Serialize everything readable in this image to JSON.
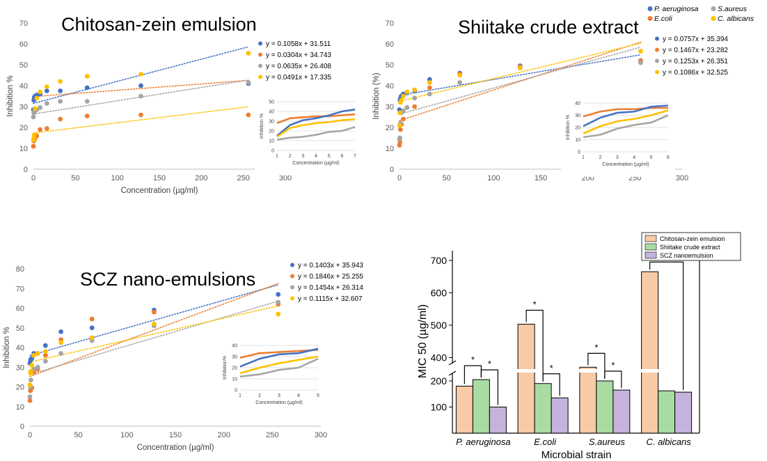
{
  "legend": {
    "items": [
      {
        "label": "P. aeruginosa",
        "color": "#4472C4",
        "italic": true
      },
      {
        "label": "S.aureus",
        "color": "#A5A5A5",
        "italic": true
      },
      {
        "label": "E.coli",
        "color": "#ED7D31",
        "italic": true
      },
      {
        "label": "C. albicans",
        "color": "#FFC000",
        "italic": true
      }
    ]
  },
  "chart_data": [
    {
      "type": "scatter",
      "title": "Chitosan-zein emulsion",
      "xlabel": "Concentration (µg/ml)",
      "ylabel": "Inhibition %",
      "xlim": [
        0,
        300
      ],
      "ylim": [
        0,
        70
      ],
      "xticks": [
        0,
        50,
        100,
        150,
        200,
        250,
        300
      ],
      "yticks": [
        0,
        10,
        20,
        30,
        40,
        50,
        60,
        70
      ],
      "trendline_style": "dotted",
      "series": [
        {
          "organism": "P. aeruginosa",
          "color": "#4472C4",
          "equation": "y = 0.1058x + 31.511",
          "slope": 0.1058,
          "intercept": 31.511,
          "x": [
            0,
            0.5,
            1,
            2,
            4,
            8,
            16,
            32,
            64,
            128,
            256
          ],
          "y": [
            28.5,
            33,
            34.5,
            35,
            35.5,
            36,
            37.5,
            37.5,
            39,
            40,
            41
          ]
        },
        {
          "organism": "E.coli",
          "color": "#ED7D31",
          "equation": "y = 0.0304x + 34.743",
          "slope": 0.0304,
          "intercept": 34.743,
          "x": [
            0,
            0.5,
            1,
            2,
            4,
            8,
            16,
            32,
            64,
            128,
            256
          ],
          "y": [
            11,
            13.5,
            14,
            15,
            16,
            19,
            19.5,
            24,
            25.5,
            26,
            26
          ]
        },
        {
          "organism": "S.aureus",
          "color": "#A5A5A5",
          "equation": "y = 0.0635x + 26.408",
          "slope": 0.0635,
          "intercept": 26.408,
          "x": [
            0,
            0.5,
            1,
            2,
            4,
            8,
            16,
            32,
            64,
            128,
            256
          ],
          "y": [
            25,
            27,
            27.5,
            28,
            28.5,
            29.5,
            31.5,
            32.5,
            32.5,
            35,
            41.5
          ]
        },
        {
          "organism": "C. albicans",
          "color": "#FFC000",
          "equation": "y = 0.0491x + 17.335",
          "slope": 0.0491,
          "intercept": 17.335,
          "x": [
            0,
            0.5,
            1,
            2,
            4,
            8,
            16,
            32,
            64,
            128,
            256
          ],
          "y": [
            14,
            15,
            16.5,
            29,
            34,
            37,
            39.5,
            42,
            44.5,
            45.5,
            55.5
          ]
        }
      ],
      "inset": {
        "type": "line",
        "xlabel": "Concentration (µg/ml)",
        "ylabel": "Inhibition %",
        "xlim": [
          1,
          7
        ],
        "ylim": [
          0,
          50
        ],
        "xticks": [
          1,
          2,
          3,
          4,
          5,
          6,
          7
        ],
        "yticks": [
          0,
          10,
          20,
          30,
          40,
          50
        ],
        "x": [
          1,
          2,
          3,
          4,
          5,
          6,
          7
        ],
        "series": [
          {
            "color": "#ED7D31",
            "y": [
              28,
              33,
              34,
              35,
              35,
              36,
              37
            ]
          },
          {
            "color": "#4472C4",
            "y": [
              15,
              26,
              31,
              33,
              36,
              40,
              42
            ]
          },
          {
            "color": "#FFC000",
            "y": [
              14,
              23,
              26,
              28,
              29,
              31,
              32
            ]
          },
          {
            "color": "#A5A5A5",
            "y": [
              11,
              13,
              14,
              16,
              19,
              20,
              24
            ]
          }
        ]
      }
    },
    {
      "type": "scatter",
      "title": "Shiitake crude extract",
      "xlabel": "",
      "ylabel": "Inhibition (%)",
      "xlim": [
        0,
        300
      ],
      "ylim": [
        0,
        70
      ],
      "xticks": [
        0,
        50,
        100,
        150,
        200,
        250,
        300
      ],
      "yticks": [
        0,
        10,
        20,
        30,
        40,
        50,
        60,
        70
      ],
      "trendline_style": "dotted",
      "series": [
        {
          "organism": "P. aeruginosa",
          "color": "#4472C4",
          "equation": "y = 0.0757x + 35.394",
          "slope": 0.0757,
          "intercept": 35.394,
          "x": [
            0,
            0.5,
            1,
            2,
            4,
            8,
            16,
            32,
            64,
            128,
            256
          ],
          "y": [
            28.5,
            33,
            34,
            35,
            36,
            36.5,
            37.5,
            43,
            46,
            49.5,
            52
          ]
        },
        {
          "organism": "E.coli",
          "color": "#ED7D31",
          "equation": "y = 0.1467x + 23.282",
          "slope": 0.1467,
          "intercept": 23.282,
          "x": [
            0,
            0.5,
            1,
            2,
            4,
            8,
            16,
            32,
            64,
            128,
            256
          ],
          "y": [
            11.5,
            13,
            19,
            21.5,
            24,
            29.5,
            30,
            39,
            45.5,
            49,
            52
          ]
        },
        {
          "organism": "S.aureus",
          "color": "#A5A5A5",
          "equation": "y = 0.1253x + 26.351",
          "slope": 0.1253,
          "intercept": 26.351,
          "x": [
            0,
            0.5,
            1,
            2,
            4,
            8,
            16,
            32,
            64,
            128,
            256
          ],
          "y": [
            14.5,
            15,
            22,
            27,
            28,
            29.5,
            34,
            36,
            41.5,
            48.5,
            51
          ]
        },
        {
          "organism": "C. albicans",
          "color": "#FFC000",
          "equation": "y = 0.1086x + 32.525",
          "slope": 0.1086,
          "intercept": 32.525,
          "x": [
            0,
            0.5,
            1,
            2,
            4,
            8,
            16,
            32,
            64,
            128,
            256
          ],
          "y": [
            21,
            27,
            32,
            33,
            35,
            37,
            38,
            41.5,
            45,
            48.5,
            56.5
          ]
        }
      ],
      "inset": {
        "type": "line",
        "xlabel": "Concentration (µg/ml)",
        "ylabel": "Inhibition %",
        "xlim": [
          1,
          6
        ],
        "ylim": [
          0,
          40
        ],
        "xticks": [
          1,
          2,
          3,
          4,
          5,
          6
        ],
        "yticks": [
          0,
          10,
          20,
          30,
          40
        ],
        "x": [
          1,
          2,
          3,
          4,
          5,
          6
        ],
        "series": [
          {
            "color": "#ED7D31",
            "y": [
              29,
              33,
              35,
              35,
              36,
              36
            ]
          },
          {
            "color": "#4472C4",
            "y": [
              21,
              28,
              32,
              33,
              37,
              38
            ]
          },
          {
            "color": "#FFC000",
            "y": [
              15,
              21,
              25,
              27,
              30,
              34
            ]
          },
          {
            "color": "#A5A5A5",
            "y": [
              12,
              14,
              19,
              22,
              24,
              30
            ]
          }
        ]
      }
    },
    {
      "type": "scatter",
      "title": "SCZ nano-emulsions",
      "xlabel": "Concentration (µg/ml)",
      "ylabel": "Inhibition %",
      "xlim": [
        0,
        300
      ],
      "ylim": [
        0,
        80
      ],
      "xticks": [
        0,
        50,
        100,
        150,
        200,
        250,
        300
      ],
      "yticks": [
        0,
        10,
        20,
        30,
        40,
        50,
        60,
        70,
        80
      ],
      "trendline_style": "dotted",
      "series": [
        {
          "organism": "P. aeruginosa",
          "color": "#4472C4",
          "equation": "y = 0.1403x + 35.943",
          "slope": 0.1403,
          "intercept": 35.943,
          "x": [
            0,
            0.5,
            1,
            2,
            4,
            8,
            16,
            32,
            64,
            128,
            256
          ],
          "y": [
            32,
            33.5,
            34,
            34.5,
            37,
            37,
            41,
            48,
            50,
            59,
            67
          ]
        },
        {
          "organism": "E.coli",
          "color": "#ED7D31",
          "equation": "y = 0.1846x + 25.255",
          "slope": 0.1846,
          "intercept": 25.255,
          "x": [
            0,
            0.5,
            1,
            2,
            4,
            8,
            16,
            32,
            64,
            128,
            256
          ],
          "y": [
            13,
            18,
            19,
            19.5,
            27.5,
            29,
            36,
            44,
            54.5,
            58,
            62
          ]
        },
        {
          "organism": "S.aureus",
          "color": "#A5A5A5",
          "equation": "y = 0.1454x + 26.314",
          "slope": 0.1454,
          "intercept": 26.314,
          "x": [
            0,
            0.5,
            1,
            2,
            4,
            8,
            16,
            32,
            64,
            128,
            256
          ],
          "y": [
            15,
            20,
            23.5,
            28,
            29,
            30,
            33,
            37,
            43.5,
            51,
            63
          ]
        },
        {
          "organism": "C. albicans",
          "color": "#FFC000",
          "equation": "y = 0.1115x + 32.607",
          "slope": 0.1115,
          "intercept": 32.607,
          "x": [
            0,
            0.5,
            1,
            2,
            4,
            8,
            16,
            32,
            64,
            128,
            256
          ],
          "y": [
            21,
            27,
            28,
            31,
            36,
            37,
            38,
            42.5,
            45,
            52,
            57
          ]
        }
      ],
      "inset": {
        "type": "line",
        "xlabel": "Concentration (µg/ml)",
        "ylabel": "Inhibition%",
        "xlim": [
          1,
          5
        ],
        "ylim": [
          0,
          40
        ],
        "xticks": [
          1,
          2,
          3,
          4,
          5
        ],
        "yticks": [
          0,
          10,
          20,
          30,
          40
        ],
        "x": [
          1,
          2,
          3,
          4,
          5
        ],
        "series": [
          {
            "color": "#ED7D31",
            "y": [
              29,
              33,
              34,
              35,
              36
            ]
          },
          {
            "color": "#4472C4",
            "y": [
              21,
              28,
              32,
              33,
              37
            ]
          },
          {
            "color": "#FFC000",
            "y": [
              15,
              20,
              24,
              27,
              30
            ]
          },
          {
            "color": "#A5A5A5",
            "y": [
              12,
              14,
              18,
              20,
              28
            ]
          }
        ]
      }
    },
    {
      "type": "bar",
      "title": "",
      "xlabel": "Microbial strain",
      "ylabel": "MIC 50 (µg/ml)",
      "categories": [
        "P. aeruginosa",
        "E.coli",
        "S.aureus",
        "C. albicans"
      ],
      "series": [
        {
          "name": "Chitosan-zein emulsion",
          "color": "#F8CBA6",
          "values": [
            180,
            503,
            370,
            665
          ]
        },
        {
          "name": "Shiitake crude extract",
          "color": "#A9DCA3",
          "values": [
            205,
            190,
            200,
            162
          ]
        },
        {
          "name": "SCZ nanoemulsion",
          "color": "#C5B3DD",
          "values": [
            100,
            135,
            165,
            157
          ]
        }
      ],
      "axis_break": {
        "lower_range": [
          0,
          240
        ],
        "upper_range": [
          360,
          730
        ]
      },
      "yticks": [
        100,
        200,
        400,
        500,
        600,
        700
      ],
      "significance": [
        {
          "category": "P. aeruginosa",
          "pair": [
            "Chitosan-zein emulsion",
            "Shiitake crude extract"
          ],
          "label": "*"
        },
        {
          "category": "P. aeruginosa",
          "pair": [
            "Shiitake crude extract",
            "SCZ nanoemulsion"
          ],
          "label": "*"
        },
        {
          "category": "E.coli",
          "pair": [
            "Chitosan-zein emulsion",
            "Shiitake crude extract"
          ],
          "label": "*"
        },
        {
          "category": "E.coli",
          "pair": [
            "Shiitake crude extract",
            "SCZ nanoemulsion"
          ],
          "label": "*"
        },
        {
          "category": "S.aureus",
          "pair": [
            "Chitosan-zein emulsion",
            "Shiitake crude extract"
          ],
          "label": "*"
        },
        {
          "category": "S.aureus",
          "pair": [
            "Shiitake crude extract",
            "SCZ nanoemulsion"
          ],
          "label": "*"
        },
        {
          "category": "C. albicans",
          "pair": [
            "Chitosan-zein emulsion",
            "SCZ nanoemulsion"
          ],
          "label": "*"
        }
      ]
    }
  ]
}
